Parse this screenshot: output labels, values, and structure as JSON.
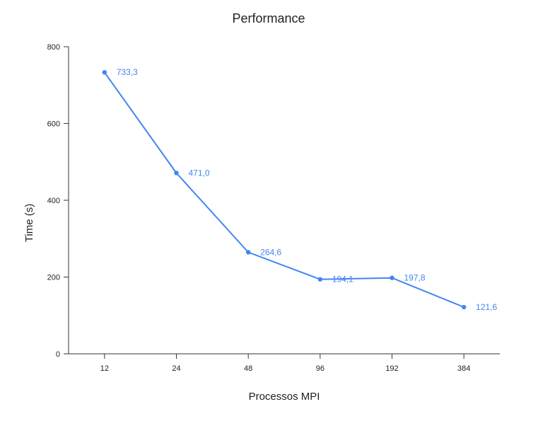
{
  "chart_data": {
    "type": "line",
    "title": "Performance",
    "xlabel": "Processos MPI",
    "ylabel": "Time (s)",
    "categories": [
      "12",
      "24",
      "48",
      "96",
      "192",
      "384"
    ],
    "series": [
      {
        "values": [
          733.3,
          471.0,
          264.6,
          194.1,
          197.8,
          121.6
        ],
        "data_labels": [
          "733,3",
          "471,0",
          "264,6",
          "194,1",
          "197,8",
          "121,6"
        ],
        "color": "#4285f4"
      }
    ],
    "ylim": [
      0,
      800
    ],
    "yticks": [
      0,
      200,
      400,
      600,
      800
    ],
    "grid": false,
    "legend": "none"
  }
}
